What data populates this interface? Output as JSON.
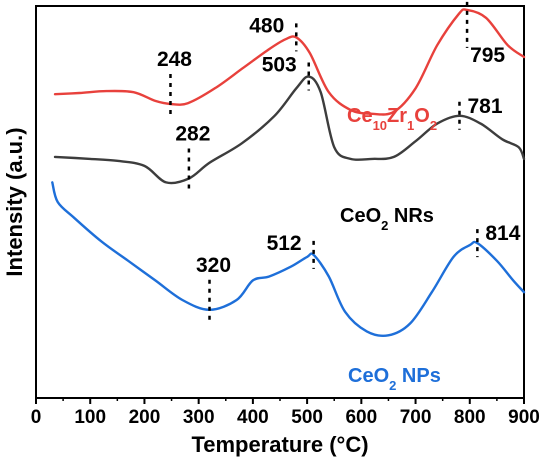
{
  "chart_data": {
    "type": "line",
    "xlabel": "Temperature (°C)",
    "ylabel": "Intensity (a.u.)",
    "xlim": [
      0,
      900
    ],
    "x_ticks": [
      0,
      100,
      200,
      300,
      400,
      500,
      600,
      700,
      800,
      900
    ],
    "x_tick_labels": [
      "0",
      "100",
      "200",
      "300",
      "400",
      "500",
      "600",
      "700",
      "800",
      "900"
    ],
    "y_ticks_shown": false,
    "grid": false,
    "series": [
      {
        "name": "Ce10Zr1O2",
        "label_parts": [
          "Ce",
          "10",
          "Zr",
          "1",
          "O",
          "2"
        ],
        "color": "#e8413c",
        "x": [
          35,
          80,
          130,
          180,
          220,
          248,
          280,
          330,
          380,
          430,
          460,
          480,
          505,
          540,
          580,
          620,
          660,
          700,
          740,
          780,
          795,
          830,
          870,
          900
        ],
        "y": [
          0.775,
          0.778,
          0.783,
          0.78,
          0.758,
          0.75,
          0.752,
          0.79,
          0.84,
          0.89,
          0.915,
          0.92,
          0.88,
          0.78,
          0.735,
          0.725,
          0.73,
          0.79,
          0.9,
          0.98,
          0.99,
          0.97,
          0.9,
          0.87
        ]
      },
      {
        "name": "CeO2 NRs",
        "label_parts": [
          "CeO",
          "2",
          " NRs"
        ],
        "color": "#3d3d3d",
        "x": [
          35,
          100,
          150,
          200,
          240,
          282,
          320,
          380,
          440,
          480,
          503,
          525,
          550,
          580,
          620,
          660,
          700,
          740,
          781,
          820,
          860,
          890,
          900
        ],
        "y": [
          0.615,
          0.61,
          0.605,
          0.592,
          0.55,
          0.56,
          0.6,
          0.65,
          0.72,
          0.79,
          0.82,
          0.78,
          0.64,
          0.61,
          0.61,
          0.615,
          0.655,
          0.7,
          0.72,
          0.7,
          0.66,
          0.64,
          0.61
        ]
      },
      {
        "name": "CeO2 NPs",
        "label_parts": [
          "CeO",
          "2",
          " NPs"
        ],
        "color": "#1e6fd9",
        "x": [
          30,
          40,
          70,
          120,
          170,
          220,
          270,
          320,
          370,
          400,
          430,
          470,
          500,
          512,
          540,
          570,
          610,
          650,
          690,
          730,
          770,
          800,
          814,
          850,
          880,
          900
        ],
        "y": [
          0.55,
          0.5,
          0.46,
          0.4,
          0.35,
          0.3,
          0.25,
          0.225,
          0.25,
          0.3,
          0.31,
          0.335,
          0.36,
          0.365,
          0.31,
          0.22,
          0.17,
          0.16,
          0.19,
          0.27,
          0.36,
          0.39,
          0.395,
          0.35,
          0.3,
          0.27
        ]
      }
    ],
    "annotations": [
      {
        "series": 0,
        "label": "248",
        "x": 248,
        "y": 0.75
      },
      {
        "series": 0,
        "label": "480",
        "x": 480,
        "y": 0.92
      },
      {
        "series": 0,
        "label": "795",
        "x": 795,
        "y": 0.99
      },
      {
        "series": 1,
        "label": "282",
        "x": 282,
        "y": 0.56
      },
      {
        "series": 1,
        "label": "503",
        "x": 503,
        "y": 0.82
      },
      {
        "series": 1,
        "label": "781",
        "x": 781,
        "y": 0.72
      },
      {
        "series": 2,
        "label": "320",
        "x": 320,
        "y": 0.225
      },
      {
        "series": 2,
        "label": "512",
        "x": 512,
        "y": 0.365
      },
      {
        "series": 2,
        "label": "814",
        "x": 814,
        "y": 0.395
      }
    ]
  }
}
